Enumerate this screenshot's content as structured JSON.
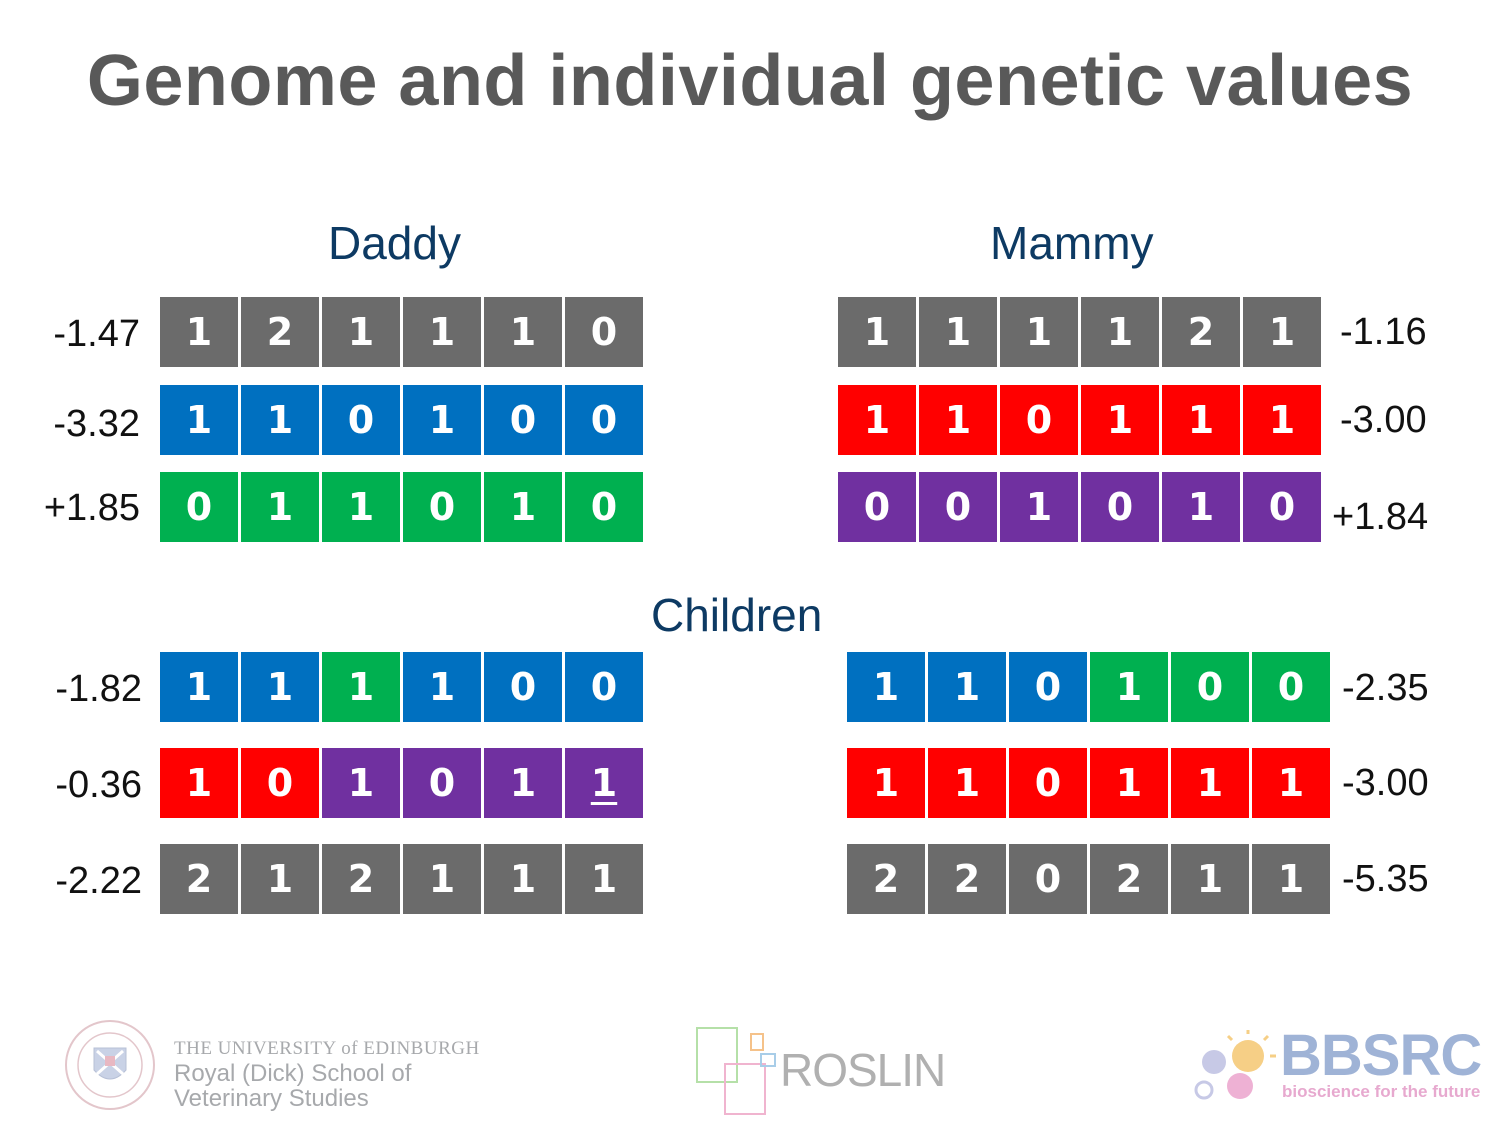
{
  "title": "Genome and individual genetic values",
  "colors": {
    "grey": "#6b6b6b",
    "blue": "#0070c0",
    "green": "#00b050",
    "red": "#ff0000",
    "purple": "#7030a0",
    "heading": "#0d3a63"
  },
  "daddy": {
    "heading": "Daddy",
    "rows": [
      {
        "value": "-1.47",
        "cells": [
          [
            "1",
            "grey"
          ],
          [
            "2",
            "grey"
          ],
          [
            "1",
            "grey"
          ],
          [
            "1",
            "grey"
          ],
          [
            "1",
            "grey"
          ],
          [
            "0",
            "grey"
          ]
        ]
      },
      {
        "value": "-3.32",
        "cells": [
          [
            "1",
            "blue"
          ],
          [
            "1",
            "blue"
          ],
          [
            "0",
            "blue"
          ],
          [
            "1",
            "blue"
          ],
          [
            "0",
            "blue"
          ],
          [
            "0",
            "blue"
          ]
        ]
      },
      {
        "value": "+1.85",
        "cells": [
          [
            "0",
            "green"
          ],
          [
            "1",
            "green"
          ],
          [
            "1",
            "green"
          ],
          [
            "0",
            "green"
          ],
          [
            "1",
            "green"
          ],
          [
            "0",
            "green"
          ]
        ]
      }
    ]
  },
  "mammy": {
    "heading": "Mammy",
    "rows": [
      {
        "value": "-1.16",
        "cells": [
          [
            "1",
            "grey"
          ],
          [
            "1",
            "grey"
          ],
          [
            "1",
            "grey"
          ],
          [
            "1",
            "grey"
          ],
          [
            "2",
            "grey"
          ],
          [
            "1",
            "grey"
          ]
        ]
      },
      {
        "value": "-3.00",
        "cells": [
          [
            "1",
            "red"
          ],
          [
            "1",
            "red"
          ],
          [
            "0",
            "red"
          ],
          [
            "1",
            "red"
          ],
          [
            "1",
            "red"
          ],
          [
            "1",
            "red"
          ]
        ]
      },
      {
        "value": "+1.84",
        "cells": [
          [
            "0",
            "purple"
          ],
          [
            "0",
            "purple"
          ],
          [
            "1",
            "purple"
          ],
          [
            "0",
            "purple"
          ],
          [
            "1",
            "purple"
          ],
          [
            "0",
            "purple"
          ]
        ]
      }
    ]
  },
  "children": {
    "heading": "Children",
    "left": [
      {
        "value": "-1.82",
        "cells": [
          [
            "1",
            "blue"
          ],
          [
            "1",
            "blue"
          ],
          [
            "1",
            "green"
          ],
          [
            "1",
            "blue"
          ],
          [
            "0",
            "blue"
          ],
          [
            "0",
            "blue"
          ]
        ]
      },
      {
        "value": "-0.36",
        "cells": [
          [
            "1",
            "red"
          ],
          [
            "0",
            "red"
          ],
          [
            "1",
            "purple"
          ],
          [
            "0",
            "purple"
          ],
          [
            "1",
            "purple"
          ],
          [
            "1",
            "purple",
            "u"
          ]
        ]
      },
      {
        "value": "-2.22",
        "cells": [
          [
            "2",
            "grey"
          ],
          [
            "1",
            "grey"
          ],
          [
            "2",
            "grey"
          ],
          [
            "1",
            "grey"
          ],
          [
            "1",
            "grey"
          ],
          [
            "1",
            "grey"
          ]
        ]
      }
    ],
    "right": [
      {
        "value": "-2.35",
        "cells": [
          [
            "1",
            "blue"
          ],
          [
            "1",
            "blue"
          ],
          [
            "0",
            "blue"
          ],
          [
            "1",
            "green"
          ],
          [
            "0",
            "green"
          ],
          [
            "0",
            "green"
          ]
        ]
      },
      {
        "value": "-3.00",
        "cells": [
          [
            "1",
            "red"
          ],
          [
            "1",
            "red"
          ],
          [
            "0",
            "red"
          ],
          [
            "1",
            "red"
          ],
          [
            "1",
            "red"
          ],
          [
            "1",
            "red"
          ]
        ]
      },
      {
        "value": "-5.35",
        "cells": [
          [
            "2",
            "grey"
          ],
          [
            "2",
            "grey"
          ],
          [
            "0",
            "grey"
          ],
          [
            "2",
            "grey"
          ],
          [
            "1",
            "grey"
          ],
          [
            "1",
            "grey"
          ]
        ]
      }
    ]
  },
  "footer": {
    "uoe_line1": "THE UNIVERSITY of EDINBURGH",
    "uoe_line2": "Royal (Dick) School of",
    "uoe_line3": "Veterinary Studies",
    "roslin": "ROSLIN",
    "bbsrc": "BBSRC",
    "bbsrc_tagline": "bioscience for the future"
  }
}
